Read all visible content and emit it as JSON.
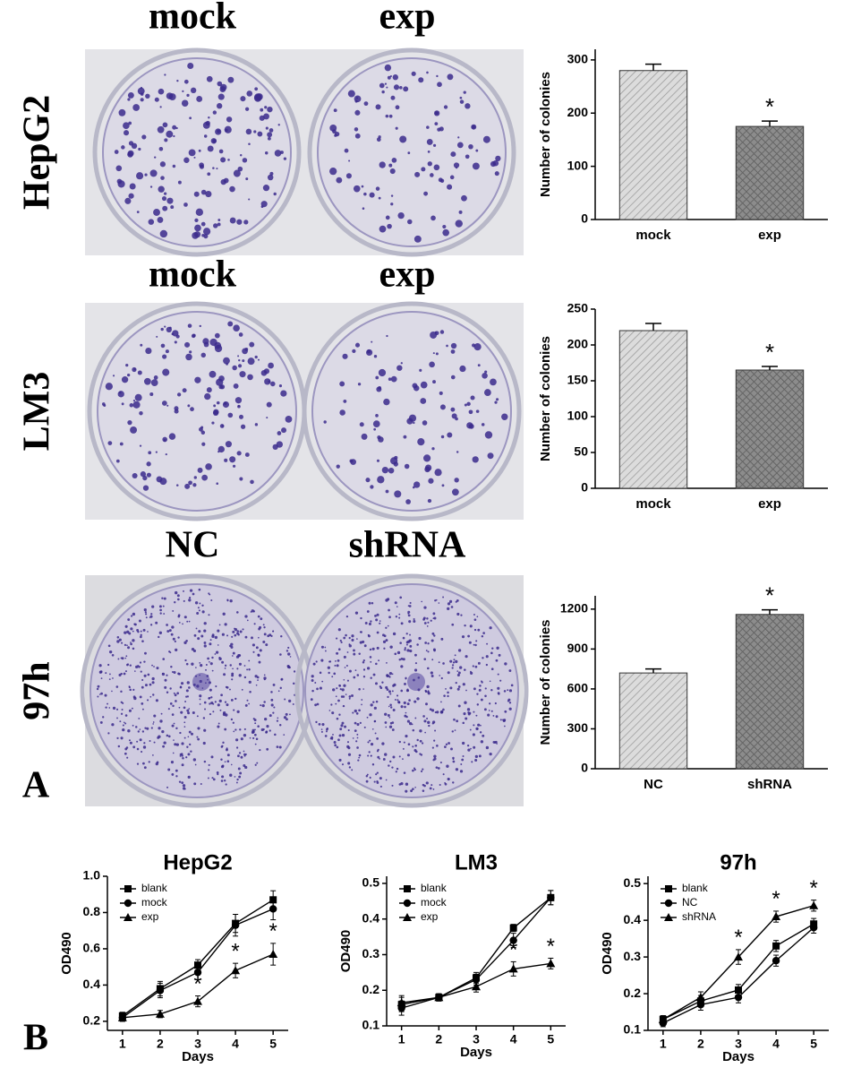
{
  "figure": {
    "panel_labels": [
      "A",
      "B"
    ],
    "rows": [
      {
        "label": "HepG2",
        "dishes": [
          "mock",
          "exp"
        ]
      },
      {
        "label": "LM3",
        "dishes": [
          "mock",
          "exp"
        ]
      },
      {
        "label": "97h",
        "dishes": [
          "NC",
          "shRNA"
        ]
      }
    ]
  },
  "chart_data": [
    {
      "type": "bar",
      "ylabel": "Number of colonies",
      "categories": [
        "mock",
        "exp"
      ],
      "values": [
        280,
        175
      ],
      "errors": [
        12,
        10
      ],
      "colors": [
        "#dcdcdc",
        "#8c8c8c"
      ],
      "ylim": [
        0,
        320
      ],
      "yticks": [
        0,
        100,
        200,
        300
      ],
      "annotations": [
        {
          "text": "*",
          "category": "exp"
        }
      ]
    },
    {
      "type": "bar",
      "ylabel": "Number of colonies",
      "categories": [
        "mock",
        "exp"
      ],
      "values": [
        220,
        165
      ],
      "errors": [
        10,
        5
      ],
      "colors": [
        "#dcdcdc",
        "#8c8c8c"
      ],
      "ylim": [
        0,
        250
      ],
      "yticks": [
        0,
        50,
        100,
        150,
        200,
        250
      ],
      "annotations": [
        {
          "text": "*",
          "category": "exp"
        }
      ]
    },
    {
      "type": "bar",
      "ylabel": "Number of colonies",
      "categories": [
        "NC",
        "shRNA"
      ],
      "values": [
        720,
        1160
      ],
      "errors": [
        30,
        35
      ],
      "colors": [
        "#dcdcdc",
        "#8c8c8c"
      ],
      "ylim": [
        0,
        1300
      ],
      "yticks": [
        0,
        300,
        600,
        900,
        1200
      ],
      "annotations": [
        {
          "text": "*",
          "category": "shRNA"
        }
      ]
    },
    {
      "type": "line",
      "title": "HepG2",
      "xlabel": "Days",
      "ylabel": "OD490",
      "x": [
        1,
        2,
        3,
        4,
        5
      ],
      "legend": "upper left",
      "series": [
        {
          "name": "blank",
          "marker": "square",
          "color": "#000000",
          "values": [
            0.23,
            0.38,
            0.51,
            0.74,
            0.87
          ],
          "errors": [
            0.02,
            0.04,
            0.03,
            0.05,
            0.05
          ]
        },
        {
          "name": "mock",
          "marker": "circle",
          "color": "#000000",
          "values": [
            0.22,
            0.37,
            0.47,
            0.73,
            0.82
          ],
          "errors": [
            0.02,
            0.04,
            0.04,
            0.06,
            0.06
          ]
        },
        {
          "name": "exp",
          "marker": "triangle",
          "color": "#000000",
          "values": [
            0.22,
            0.24,
            0.31,
            0.48,
            0.57
          ],
          "errors": [
            0.02,
            0.02,
            0.03,
            0.04,
            0.06
          ]
        }
      ],
      "xlim": [
        0.6,
        5.4
      ],
      "xticks": [
        1,
        2,
        3,
        4,
        5
      ],
      "ylim": [
        0.15,
        1.0
      ],
      "yticks": [
        0.2,
        0.4,
        0.6,
        0.8,
        {
          "value": 1.0,
          "label": "1.0"
        }
      ],
      "annotations": [
        {
          "text": "*",
          "x": 3
        },
        {
          "text": "*",
          "x": 4
        },
        {
          "text": "*",
          "x": 5
        }
      ]
    },
    {
      "type": "line",
      "title": "LM3",
      "xlabel": "Days",
      "ylabel": "OD490",
      "x": [
        1,
        2,
        3,
        4,
        5
      ],
      "legend": "upper left",
      "series": [
        {
          "name": "blank",
          "marker": "square",
          "color": "#000000",
          "values": [
            0.16,
            0.18,
            0.235,
            0.375,
            0.46
          ],
          "errors": [
            0.02,
            0.01,
            0.015,
            0.01,
            0.02
          ]
        },
        {
          "name": "mock",
          "marker": "circle",
          "color": "#000000",
          "values": [
            0.15,
            0.18,
            0.23,
            0.34,
            0.46
          ],
          "errors": [
            0.02,
            0.01,
            0.015,
            0.02,
            0.02
          ]
        },
        {
          "name": "exp",
          "marker": "triangle",
          "color": "#000000",
          "values": [
            0.165,
            0.18,
            0.21,
            0.26,
            0.275
          ],
          "errors": [
            0.02,
            0.01,
            0.015,
            0.02,
            0.015
          ]
        }
      ],
      "xlim": [
        0.6,
        5.4
      ],
      "xticks": [
        1,
        2,
        3,
        4,
        5
      ],
      "ylim": [
        0.1,
        0.52
      ],
      "yticks": [
        0.1,
        0.2,
        0.3,
        0.4,
        0.5
      ],
      "annotations": [
        {
          "text": "*",
          "x": 4
        },
        {
          "text": "*",
          "x": 5
        }
      ]
    },
    {
      "type": "line",
      "title": "97h",
      "xlabel": "Days",
      "ylabel": "OD490",
      "x": [
        1,
        2,
        3,
        4,
        5
      ],
      "legend": "upper left",
      "series": [
        {
          "name": "blank",
          "marker": "square",
          "color": "#000000",
          "values": [
            0.13,
            0.18,
            0.21,
            0.33,
            0.39
          ],
          "errors": [
            0.01,
            0.015,
            0.015,
            0.015,
            0.015
          ]
        },
        {
          "name": "NC",
          "marker": "circle",
          "color": "#000000",
          "values": [
            0.12,
            0.17,
            0.19,
            0.29,
            0.38
          ],
          "errors": [
            0.01,
            0.015,
            0.015,
            0.015,
            0.015
          ]
        },
        {
          "name": "shRNA",
          "marker": "triangle",
          "color": "#000000",
          "values": [
            0.13,
            0.19,
            0.3,
            0.41,
            0.44
          ],
          "errors": [
            0.01,
            0.015,
            0.02,
            0.015,
            0.015
          ]
        }
      ],
      "xlim": [
        0.6,
        5.4
      ],
      "xticks": [
        1,
        2,
        3,
        4,
        5
      ],
      "ylim": [
        0.1,
        0.52
      ],
      "yticks": [
        0.1,
        0.2,
        0.3,
        0.4,
        0.5
      ],
      "annotations": [
        {
          "text": "*",
          "x": 3
        },
        {
          "text": "*",
          "x": 4
        },
        {
          "text": "*",
          "x": 5
        }
      ]
    }
  ]
}
